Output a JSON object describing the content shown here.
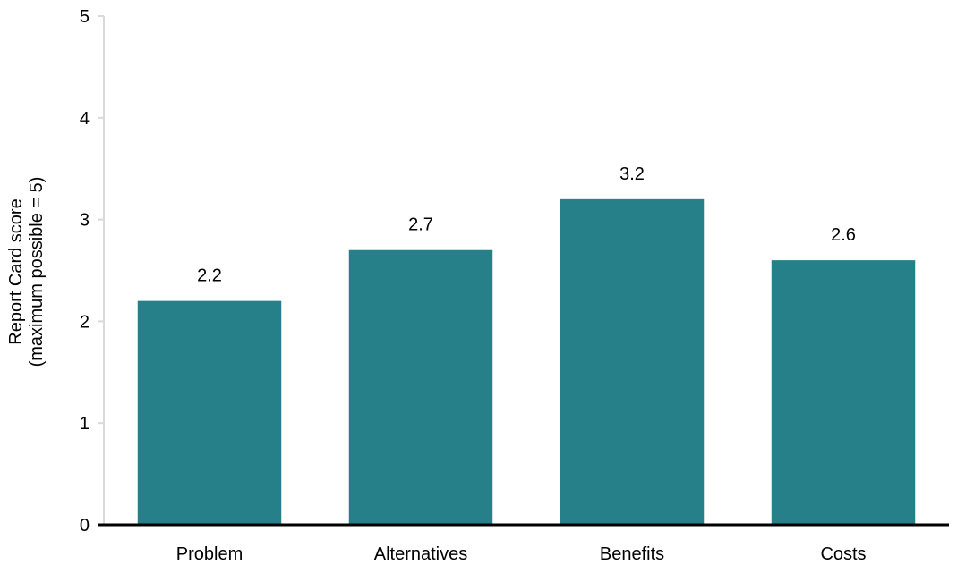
{
  "chart_data": {
    "type": "bar",
    "categories": [
      "Problem",
      "Alternatives",
      "Benefits",
      "Costs"
    ],
    "values": [
      2.2,
      2.7,
      3.2,
      2.6
    ],
    "data_labels": [
      "2.2",
      "2.7",
      "3.2",
      "2.6"
    ],
    "ylabel_line1": "Report Card score",
    "ylabel_line2": "(maximum possible = 5)",
    "xlabel": "",
    "ylim": [
      0,
      5
    ],
    "yticks": [
      0,
      1,
      2,
      3,
      4,
      5
    ],
    "grid": false,
    "legend": "none",
    "bar_color": "#268089",
    "y_axis_color": "#d9d9d9",
    "x_axis_color": "#000000"
  }
}
